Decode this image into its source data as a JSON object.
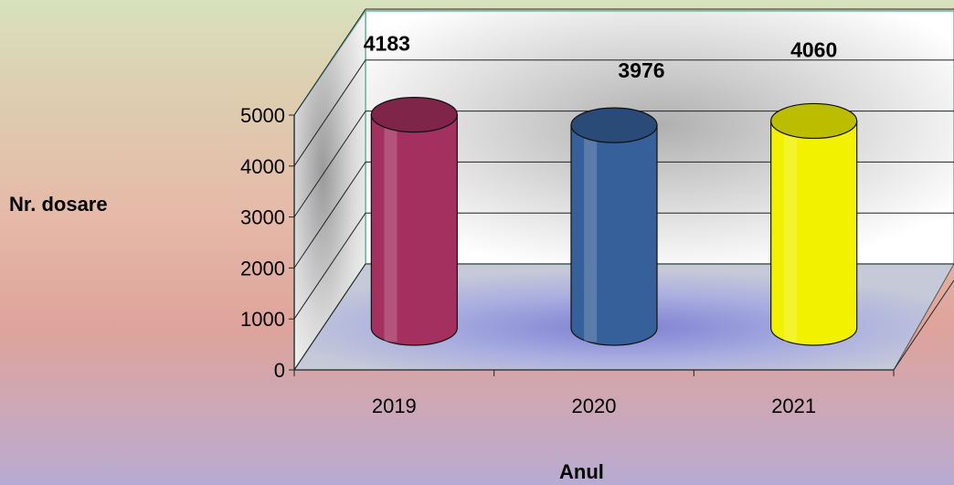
{
  "chart_data": {
    "type": "bar",
    "style": "3d-cylinder",
    "categories": [
      "2019",
      "2020",
      "2021"
    ],
    "values": [
      4183,
      3976,
      4060
    ],
    "data_labels": [
      "4183",
      "3976",
      "4060"
    ],
    "colors": [
      "#a3305f",
      "#366099",
      "#f2f200"
    ],
    "xlabel": "Anul",
    "ylabel": "Nr. dosare",
    "ylim": [
      0,
      5000
    ],
    "yticks": [
      "0",
      "1000",
      "2000",
      "3000",
      "4000",
      "5000"
    ],
    "grid": true,
    "legend": "none"
  }
}
